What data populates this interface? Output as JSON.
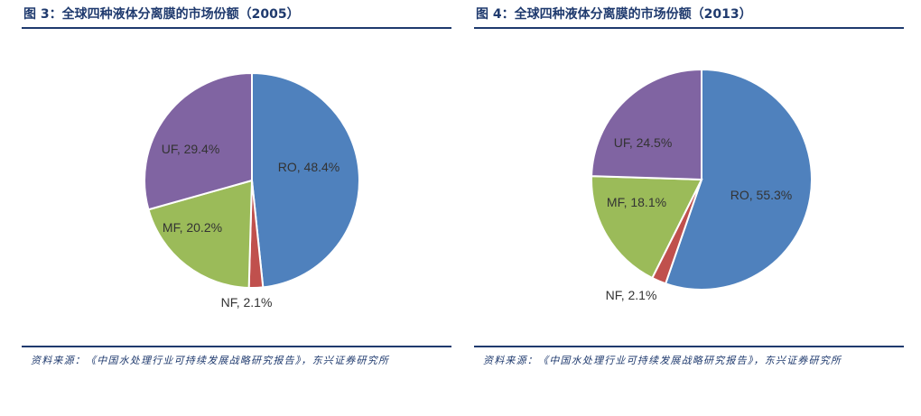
{
  "panels": [
    {
      "title": "图 3：全球四种液体分离膜的市场份额（2005）",
      "source": "资料来源：《中国水处理行业可持续发展战略研究报告》，东兴证券研究所"
    },
    {
      "title": "图 4：全球四种液体分离膜的市场份额（2013）",
      "source": "资料来源：《中国水处理行业可持续发展战略研究报告》，东兴证券研究所"
    }
  ],
  "chart_data": [
    {
      "type": "pie",
      "title": "图 3：全球四种液体分离膜的市场份额（2005）",
      "slices": [
        {
          "name": "RO",
          "value": 48.4,
          "label": "RO, 48.4%",
          "color": "#4f81bd"
        },
        {
          "name": "NF",
          "value": 2.1,
          "label": "NF, 2.1%",
          "color": "#c0504d"
        },
        {
          "name": "MF",
          "value": 20.2,
          "label": "MF, 20.2%",
          "color": "#9bbb59"
        },
        {
          "name": "UF",
          "value": 29.4,
          "label": "UF, 29.4%",
          "color": "#8064a2"
        }
      ]
    },
    {
      "type": "pie",
      "title": "图 4：全球四种液体分离膜的市场份额（2013）",
      "slices": [
        {
          "name": "RO",
          "value": 55.3,
          "label": "RO, 55.3%",
          "color": "#4f81bd"
        },
        {
          "name": "NF",
          "value": 2.1,
          "label": "NF, 2.1%",
          "color": "#c0504d"
        },
        {
          "name": "MF",
          "value": 18.1,
          "label": "MF, 18.1%",
          "color": "#9bbb59"
        },
        {
          "name": "UF",
          "value": 24.5,
          "label": "UF, 24.5%",
          "color": "#8064a2"
        }
      ]
    }
  ]
}
